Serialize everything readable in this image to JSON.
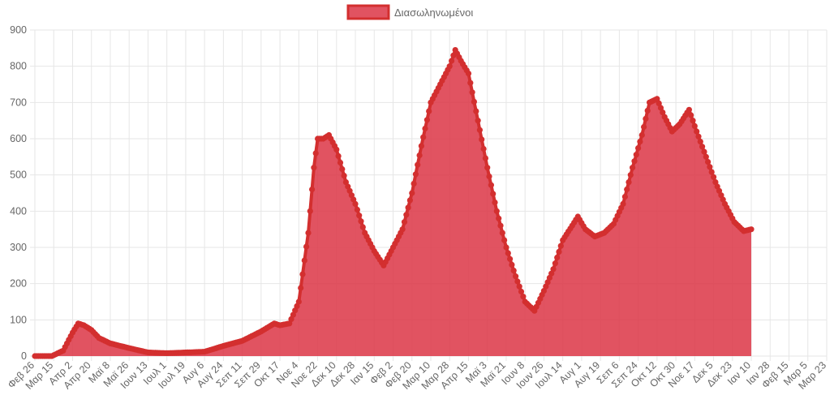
{
  "chart_data": {
    "type": "area",
    "legend": {
      "position": "top",
      "label": "Διασωληνωμένοι"
    },
    "colors": {
      "fill": "#dc3545",
      "fill_opacity": 0.85,
      "stroke": "#d32f2f",
      "grid": "#e6e6e6"
    },
    "grid": true,
    "ylim": [
      0,
      900
    ],
    "y_ticks": [
      0,
      100,
      200,
      300,
      400,
      500,
      600,
      700,
      800,
      900
    ],
    "x_tick_labels": [
      "Φεβ 26",
      "Μαρ 15",
      "Απρ 2",
      "Απρ 20",
      "Μαϊ 8",
      "Μαϊ 26",
      "Ιουν 13",
      "Ιουλ 1",
      "Ιουλ 19",
      "Αυγ 6",
      "Αυγ 24",
      "Σεπ 11",
      "Σεπ 29",
      "Οκτ 17",
      "Νοε 4",
      "Νοε 22",
      "Δεκ 10",
      "Δεκ 28",
      "Ιαν 15",
      "Φεβ 2",
      "Φεβ 20",
      "Μαρ 10",
      "Μαρ 28",
      "Απρ 15",
      "Μαϊ 3",
      "Μαϊ 21",
      "Ιουν 8",
      "Ιουν 26",
      "Ιουλ 14",
      "Αυγ 1",
      "Αυγ 19",
      "Σεπ 6",
      "Σεπ 24",
      "Οκτ 12",
      "Οκτ 30",
      "Νοε 17",
      "Δεκ 5",
      "Δεκ 23",
      "Ιαν 10",
      "Ιαν 28",
      "Φεβ 15",
      "Μαρ 5",
      "Μαρ 23"
    ],
    "series": [
      {
        "name": "Διασωληνωμένοι",
        "points": [
          [
            0,
            0
          ],
          [
            0.9,
            0
          ],
          [
            1.5,
            15
          ],
          [
            2,
            65
          ],
          [
            2.3,
            90
          ],
          [
            2.6,
            85
          ],
          [
            3,
            72
          ],
          [
            3.4,
            50
          ],
          [
            4,
            35
          ],
          [
            5,
            22
          ],
          [
            6,
            10
          ],
          [
            7,
            8
          ],
          [
            8,
            10
          ],
          [
            9,
            12
          ],
          [
            10,
            28
          ],
          [
            11,
            42
          ],
          [
            12,
            68
          ],
          [
            12.7,
            90
          ],
          [
            13,
            85
          ],
          [
            13.5,
            90
          ],
          [
            14,
            150
          ],
          [
            14.5,
            340
          ],
          [
            14.8,
            520
          ],
          [
            15,
            600
          ],
          [
            15.3,
            600
          ],
          [
            15.6,
            610
          ],
          [
            16,
            570
          ],
          [
            16.5,
            480
          ],
          [
            17,
            420
          ],
          [
            17.5,
            340
          ],
          [
            18,
            290
          ],
          [
            18.5,
            250
          ],
          [
            19,
            300
          ],
          [
            19.5,
            350
          ],
          [
            20,
            450
          ],
          [
            20.5,
            580
          ],
          [
            21,
            700
          ],
          [
            21.5,
            750
          ],
          [
            22,
            800
          ],
          [
            22.3,
            845
          ],
          [
            22.6,
            815
          ],
          [
            23,
            780
          ],
          [
            23.5,
            650
          ],
          [
            24,
            520
          ],
          [
            24.5,
            400
          ],
          [
            25,
            300
          ],
          [
            25.5,
            220
          ],
          [
            26,
            150
          ],
          [
            26.5,
            125
          ],
          [
            27,
            180
          ],
          [
            27.5,
            240
          ],
          [
            28,
            320
          ],
          [
            28.5,
            360
          ],
          [
            28.8,
            385
          ],
          [
            29.2,
            350
          ],
          [
            29.7,
            330
          ],
          [
            30.2,
            340
          ],
          [
            30.7,
            365
          ],
          [
            31.2,
            420
          ],
          [
            31.7,
            520
          ],
          [
            32.2,
            610
          ],
          [
            32.6,
            700
          ],
          [
            33,
            710
          ],
          [
            33.4,
            660
          ],
          [
            33.8,
            620
          ],
          [
            34.2,
            640
          ],
          [
            34.7,
            680
          ],
          [
            35.1,
            620
          ],
          [
            35.6,
            550
          ],
          [
            36.1,
            480
          ],
          [
            36.6,
            420
          ],
          [
            37.1,
            370
          ],
          [
            37.6,
            345
          ],
          [
            38,
            350
          ]
        ]
      }
    ]
  }
}
